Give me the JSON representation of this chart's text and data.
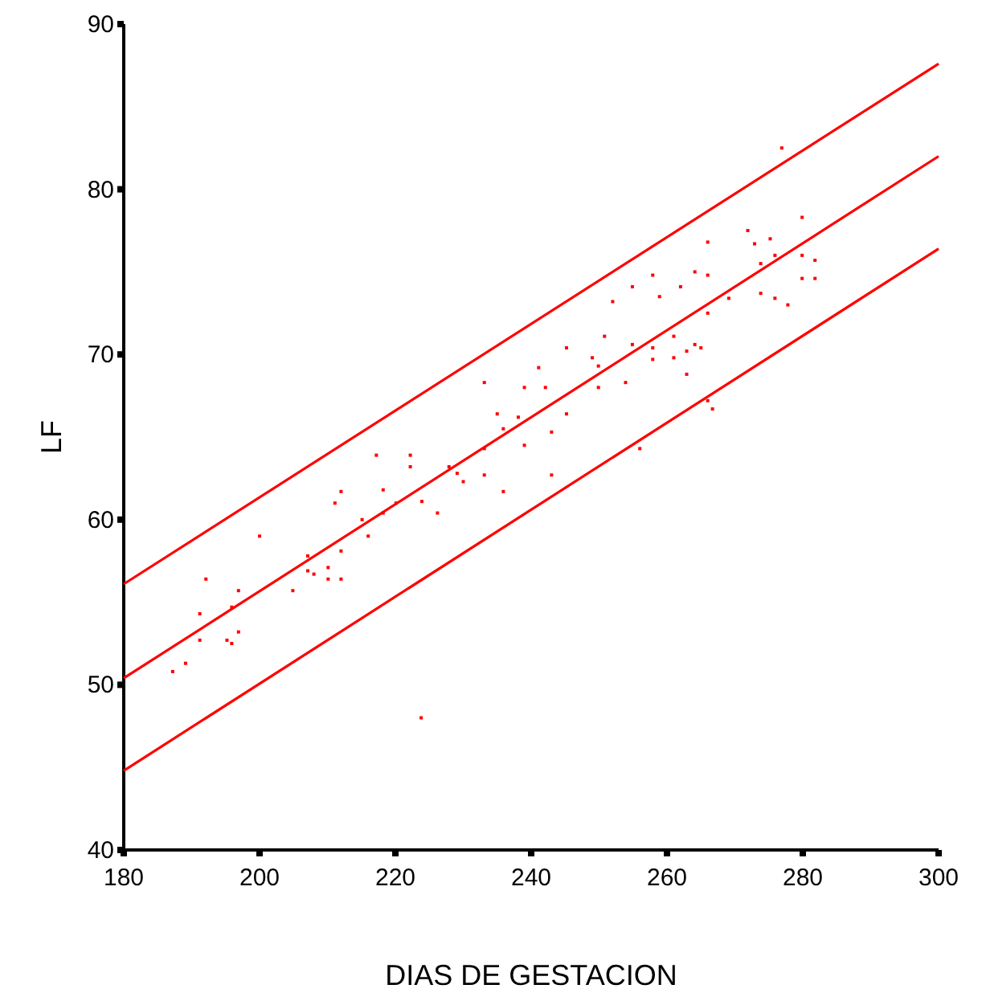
{
  "chart_data": {
    "type": "scatter",
    "xlabel": "DIAS DE GESTACION",
    "ylabel": "LF",
    "xlim": [
      180,
      300
    ],
    "ylim": [
      40,
      90
    ],
    "xticks": [
      180,
      200,
      220,
      240,
      260,
      280,
      300
    ],
    "yticks": [
      40,
      50,
      60,
      70,
      80,
      90
    ],
    "grid": false,
    "series": [
      {
        "color": "#ff0000",
        "marker": "square",
        "x": [
          217.2,
          212.0,
          218.2,
          211.1,
          220.1,
          215.1,
          218.2,
          200.0,
          216.0,
          207.1,
          212.0,
          207.1,
          208.0,
          210.1,
          210.1,
          212.0,
          192.1,
          196.9,
          204.9,
          195.9,
          191.2,
          196.9,
          191.2,
          195.2,
          195.9,
          189.1,
          187.2,
          245.2,
          249.0,
          241.1,
          233.1,
          239.0,
          242.1,
          235.0,
          238.1,
          245.2,
          235.9,
          243.0,
          233.1,
          239.0,
          222.2,
          222.2,
          227.9,
          233.1,
          243.0,
          229.1,
          230.0,
          235.9,
          223.9,
          226.2,
          276.9,
          279.9,
          271.9,
          275.2,
          272.9,
          266.0,
          275.9,
          279.9,
          281.8,
          273.8,
          257.9,
          264.1,
          266.0,
          279.9,
          281.8,
          254.9,
          262.0,
          258.9,
          273.8,
          275.9,
          277.8,
          252.0,
          269.1,
          266.0,
          250.8,
          261.0,
          254.9,
          257.9,
          264.1,
          265.0,
          262.9,
          249.9,
          257.9,
          261.0,
          262.9,
          253.9,
          249.9,
          266.0,
          266.7,
          256.0,
          223.8
        ],
        "values": [
          63.9,
          61.7,
          61.8,
          61.0,
          61.0,
          60.0,
          60.4,
          59.0,
          59.0,
          57.8,
          58.1,
          56.9,
          56.7,
          57.1,
          56.4,
          56.4,
          56.4,
          55.7,
          55.7,
          54.7,
          54.3,
          53.2,
          52.7,
          52.7,
          52.5,
          51.3,
          50.8,
          70.4,
          69.8,
          69.2,
          68.3,
          68.0,
          68.0,
          66.4,
          66.2,
          66.4,
          65.5,
          65.3,
          64.3,
          64.5,
          63.9,
          63.2,
          63.2,
          62.7,
          62.7,
          62.8,
          62.3,
          61.7,
          61.1,
          60.4,
          82.5,
          78.3,
          77.5,
          77.0,
          76.7,
          76.8,
          76.0,
          76.0,
          75.7,
          75.5,
          74.8,
          75.0,
          74.8,
          74.6,
          74.6,
          74.1,
          74.1,
          73.5,
          73.7,
          73.4,
          73.0,
          73.2,
          73.4,
          72.5,
          71.1,
          71.1,
          70.6,
          70.4,
          70.6,
          70.4,
          70.2,
          69.3,
          69.7,
          69.8,
          68.8,
          68.3,
          68.0,
          67.2,
          66.7,
          64.3,
          48.0
        ]
      },
      {
        "type": "line",
        "color": "#ff0000",
        "x": [
          180,
          300
        ],
        "values": [
          56.1,
          87.6
        ]
      },
      {
        "type": "line",
        "color": "#ff0000",
        "x": [
          180,
          300
        ],
        "values": [
          50.4,
          82.0
        ]
      },
      {
        "type": "line",
        "color": "#ff0000",
        "x": [
          180,
          300
        ],
        "values": [
          44.8,
          76.4
        ]
      }
    ]
  }
}
